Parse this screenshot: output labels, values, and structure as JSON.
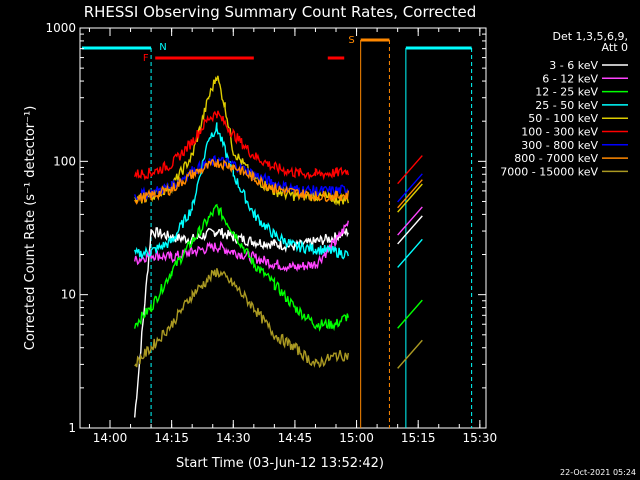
{
  "chart_data": {
    "type": "line",
    "title": "RHESSI Observing Summary Count Rates, Corrected",
    "xlabel": "Start Time (03-Jun-12 13:52:42)",
    "ylabel": "Corrected Count Rate (s⁻¹ detector⁻¹)",
    "y_scale": "log",
    "ylim": [
      1,
      1000
    ],
    "xlim": [
      "13:52:42",
      "15:31:30"
    ],
    "x_ticks": [
      "14:00",
      "14:15",
      "14:30",
      "14:45",
      "15:00",
      "15:15",
      "15:30"
    ],
    "y_ticks": [
      "1",
      "10",
      "100",
      "1000"
    ],
    "legend": {
      "placement": "right",
      "header_line1": "Det 1,3,5,6,9,",
      "header_line2": "Att 0"
    },
    "series": [
      {
        "name": "3 - 6 keV",
        "color": "#ffffff",
        "x": [
          "13:55",
          "14:03",
          "14:06",
          "14:10",
          "14:15",
          "14:20",
          "14:26",
          "14:30",
          "14:35",
          "14:40",
          "14:45",
          "14:50",
          "14:55",
          "14:58"
        ],
        "values": [
          null,
          null,
          1.2,
          30,
          27,
          26,
          30,
          27,
          25,
          24,
          23,
          25,
          27,
          30
        ]
      },
      {
        "name": "6 - 12 keV",
        "color": "#ff44ff",
        "x": [
          "14:06",
          "14:10",
          "14:15",
          "14:20",
          "14:26",
          "14:30",
          "14:35",
          "14:40",
          "14:45",
          "14:50",
          "14:55",
          "14:58"
        ],
        "values": [
          18,
          20,
          19,
          21,
          23,
          21,
          19,
          17,
          16,
          17,
          25,
          35
        ]
      },
      {
        "name": "12 - 25 keV",
        "color": "#00ff00",
        "x": [
          "14:06",
          "14:10",
          "14:15",
          "14:20",
          "14:26",
          "14:30",
          "14:35",
          "14:40",
          "14:45",
          "14:50",
          "14:55",
          "14:58"
        ],
        "values": [
          6,
          8,
          15,
          25,
          45,
          30,
          17,
          12,
          8,
          6,
          6,
          7
        ]
      },
      {
        "name": "25 - 50 keV",
        "color": "#00ffff",
        "x": [
          "14:06",
          "14:10",
          "14:15",
          "14:20",
          "14:24",
          "14:26",
          "14:30",
          "14:35",
          "14:40",
          "14:45",
          "14:50",
          "14:55",
          "14:58"
        ],
        "values": [
          20,
          21,
          25,
          45,
          150,
          180,
          80,
          40,
          28,
          23,
          22,
          21,
          20
        ]
      },
      {
        "name": "50 - 100 keV",
        "color": "#ddcc00",
        "x": [
          "14:06",
          "14:10",
          "14:15",
          "14:20",
          "14:24",
          "14:26",
          "14:28",
          "14:30",
          "14:35",
          "14:40",
          "14:45",
          "14:50",
          "14:55",
          "14:58"
        ],
        "values": [
          50,
          55,
          65,
          110,
          300,
          440,
          260,
          120,
          75,
          60,
          55,
          55,
          52,
          52
        ]
      },
      {
        "name": "100 - 300 keV",
        "color": "#ff0000",
        "x": [
          "14:06",
          "14:10",
          "14:15",
          "14:20",
          "14:24",
          "14:26",
          "14:30",
          "14:35",
          "14:40",
          "14:45",
          "14:50",
          "14:55",
          "14:58"
        ],
        "values": [
          80,
          82,
          95,
          140,
          210,
          230,
          160,
          110,
          90,
          82,
          80,
          82,
          85
        ]
      },
      {
        "name": "300 - 800 keV",
        "color": "#0000ff",
        "x": [
          "14:06",
          "14:10",
          "14:15",
          "14:20",
          "14:26",
          "14:30",
          "14:35",
          "14:40",
          "14:45",
          "14:50",
          "14:55",
          "14:58"
        ],
        "values": [
          55,
          58,
          65,
          85,
          102,
          95,
          80,
          68,
          62,
          60,
          60,
          62
        ]
      },
      {
        "name": "800 - 7000 keV",
        "color": "#ff8800",
        "x": [
          "14:06",
          "14:10",
          "14:15",
          "14:20",
          "14:26",
          "14:30",
          "14:35",
          "14:40",
          "14:45",
          "14:50",
          "14:55",
          "14:58"
        ],
        "values": [
          52,
          55,
          62,
          80,
          98,
          92,
          75,
          63,
          58,
          55,
          55,
          56
        ]
      },
      {
        "name": "7000 - 15000 keV",
        "color": "#aa9922",
        "x": [
          "14:06",
          "14:10",
          "14:15",
          "14:20",
          "14:26",
          "14:30",
          "14:35",
          "14:40",
          "14:45",
          "14:50",
          "14:55",
          "14:58"
        ],
        "values": [
          3,
          4,
          6,
          10,
          15,
          12,
          8,
          5,
          4,
          3,
          3.5,
          3.5
        ]
      }
    ],
    "annotations": {
      "night_labels": [
        "N"
      ],
      "flare_labels": [
        "F"
      ],
      "saa_labels": [
        "S"
      ]
    }
  },
  "footer_date": "22-Oct-2021 05:24"
}
